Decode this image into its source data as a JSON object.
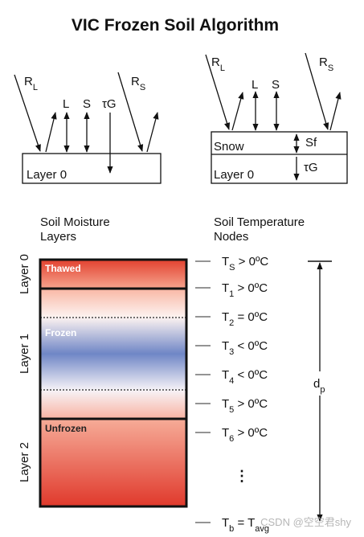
{
  "title": "VIC Frozen Soil Algorithm",
  "left_panel": {
    "r_l": [
      {
        "t": "R"
      },
      {
        "t": "L",
        "sub": true
      }
    ],
    "l": [
      {
        "t": "L"
      }
    ],
    "s": [
      {
        "t": "S"
      }
    ],
    "tau_g": [
      {
        "t": "τG"
      }
    ],
    "r_s": [
      {
        "t": "R"
      },
      {
        "t": "S",
        "sub": true
      }
    ],
    "box_label": [
      {
        "t": "Layer 0"
      }
    ]
  },
  "right_panel": {
    "r_l": [
      {
        "t": "R"
      },
      {
        "t": "L",
        "sub": true
      }
    ],
    "l": [
      {
        "t": "L"
      }
    ],
    "s": [
      {
        "t": "S"
      }
    ],
    "r_s": [
      {
        "t": "R"
      },
      {
        "t": "S",
        "sub": true
      }
    ],
    "snow_label": [
      {
        "t": "Snow"
      }
    ],
    "layer_label": [
      {
        "t": "Layer 0"
      }
    ],
    "sf": [
      {
        "t": "Sf"
      }
    ],
    "tau_g": [
      {
        "t": "τG"
      }
    ]
  },
  "moisture_heading": [
    "Soil Moisture",
    "Layers"
  ],
  "temperature_heading": [
    "Soil Temperature",
    "Nodes"
  ],
  "layers": [
    "Layer 0",
    "Layer 1",
    "Layer 2"
  ],
  "zones": [
    "Thawed",
    "Frozen",
    "Unfrozen"
  ],
  "nodes": [
    [
      {
        "t": "T"
      },
      {
        "t": "S",
        "sub": true
      },
      {
        "t": " > 0ºC"
      }
    ],
    [
      {
        "t": "T"
      },
      {
        "t": "1",
        "sub": true
      },
      {
        "t": " > 0ºC"
      }
    ],
    [
      {
        "t": "T"
      },
      {
        "t": "2",
        "sub": true
      },
      {
        "t": " = 0ºC"
      }
    ],
    [
      {
        "t": "T"
      },
      {
        "t": "3",
        "sub": true
      },
      {
        "t": " < 0ºC"
      }
    ],
    [
      {
        "t": "T"
      },
      {
        "t": "4",
        "sub": true
      },
      {
        "t": " < 0ºC"
      }
    ],
    [
      {
        "t": "T"
      },
      {
        "t": "5",
        "sub": true
      },
      {
        "t": " > 0ºC"
      }
    ],
    [
      {
        "t": "T"
      },
      {
        "t": "6",
        "sub": true
      },
      {
        "t": " > 0ºC"
      }
    ],
    [
      {
        "t": "T"
      },
      {
        "t": "b",
        "sub": true
      },
      {
        "t": " = T"
      },
      {
        "t": "avg",
        "sub": true
      }
    ]
  ],
  "ellipsis": "⋮",
  "depth_label": [
    {
      "t": "d"
    },
    {
      "t": "p",
      "sub": true
    }
  ],
  "watermark": "CSDN @空空君shy"
}
